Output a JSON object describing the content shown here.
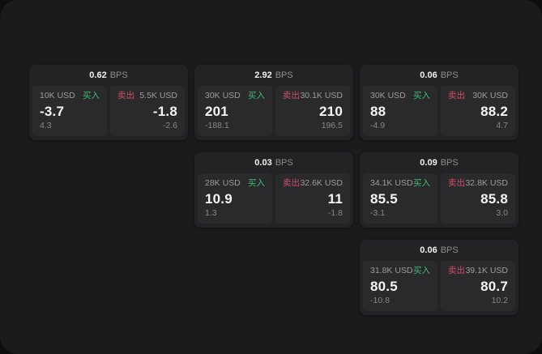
{
  "labels": {
    "buy": "买入",
    "sell": "卖出",
    "bps_unit": "BPS"
  },
  "colors": {
    "page_bg": "#0e0e0f",
    "panel_bg": "#1b1b1c",
    "card_bg": "#232325",
    "tile_bg": "#2a2a2c",
    "buy_green": "#3dbd72",
    "sell_red": "#cd4f68",
    "value_white": "#f5f5f5",
    "muted_gray": "#9c9c9e"
  },
  "cards": [
    {
      "bps": "0.62",
      "buy": {
        "amount": "10K USD",
        "value": "-3.7",
        "sub": "4.3"
      },
      "sell": {
        "amount": "5.5K USD",
        "value": "-1.8",
        "sub": "-2.6"
      }
    },
    {
      "bps": "2.92",
      "buy": {
        "amount": "30K USD",
        "value": "201",
        "sub": "-188.1"
      },
      "sell": {
        "amount": "30.1K USD",
        "value": "210",
        "sub": "196.5"
      }
    },
    {
      "bps": "0.06",
      "buy": {
        "amount": "30K USD",
        "value": "88",
        "sub": "-4.9"
      },
      "sell": {
        "amount": "30K USD",
        "value": "88.2",
        "sub": "4.7"
      }
    },
    {
      "bps": "0.03",
      "buy": {
        "amount": "28K USD",
        "value": "10.9",
        "sub": "1.3"
      },
      "sell": {
        "amount": "32.6K USD",
        "value": "11",
        "sub": "-1.8"
      }
    },
    {
      "bps": "0.09",
      "buy": {
        "amount": "34.1K USD",
        "value": "85.5",
        "sub": "-3.1"
      },
      "sell": {
        "amount": "32.8K USD",
        "value": "85.8",
        "sub": "3.0"
      }
    },
    {
      "bps": "0.06",
      "buy": {
        "amount": "31.8K USD",
        "value": "80.5",
        "sub": "-10.8"
      },
      "sell": {
        "amount": "39.1K USD",
        "value": "80.7",
        "sub": "10.2"
      }
    }
  ]
}
